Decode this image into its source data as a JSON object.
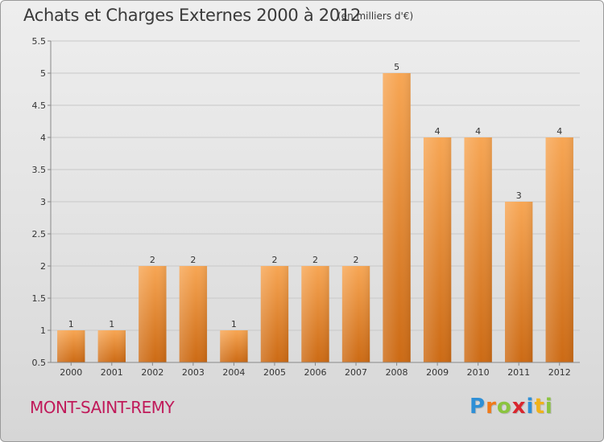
{
  "header": {
    "title": "Achats et Charges Externes 2000 à 2012",
    "unit": "(en milliers d'€)"
  },
  "footer": {
    "commune": "MONT-SAINT-REMY"
  },
  "logo": {
    "text": "Proxiti",
    "letters": [
      {
        "ch": "P",
        "color": "#2e8fd6"
      },
      {
        "ch": "r",
        "color": "#f07a1a"
      },
      {
        "ch": "o",
        "color": "#8bc43f"
      },
      {
        "ch": "x",
        "color": "#d8262e"
      },
      {
        "ch": "i",
        "color": "#2e8fd6"
      },
      {
        "ch": "t",
        "color": "#f0b21a"
      },
      {
        "ch": "i",
        "color": "#8bc43f"
      }
    ]
  },
  "colors": {
    "bar_top": "#f7a654",
    "bar_bottom": "#cc6a14",
    "grid": "#c8c8c8",
    "axis_text": "#333333",
    "accent": "#c01a5a"
  },
  "chart_data": {
    "type": "bar",
    "title": "Achats et Charges Externes 2000 à 2012",
    "subtitle": "(en milliers d'€)",
    "categories": [
      "2000",
      "2001",
      "2002",
      "2003",
      "2004",
      "2005",
      "2006",
      "2007",
      "2008",
      "2009",
      "2010",
      "2011",
      "2012"
    ],
    "values": [
      1,
      1,
      2,
      2,
      1,
      2,
      2,
      2,
      5,
      4,
      4,
      3,
      4
    ],
    "data_labels": [
      "1",
      "1",
      "2",
      "2",
      "1",
      "2",
      "2",
      "2",
      "5",
      "4",
      "4",
      "3",
      "4"
    ],
    "ylim": [
      0.5,
      5.5
    ],
    "yticks": [
      "0.5",
      "1",
      "1.5",
      "2",
      "2.5",
      "3",
      "3.5",
      "4",
      "4.5",
      "5",
      "5.5"
    ],
    "grid": true,
    "xlabel": "",
    "ylabel": ""
  }
}
